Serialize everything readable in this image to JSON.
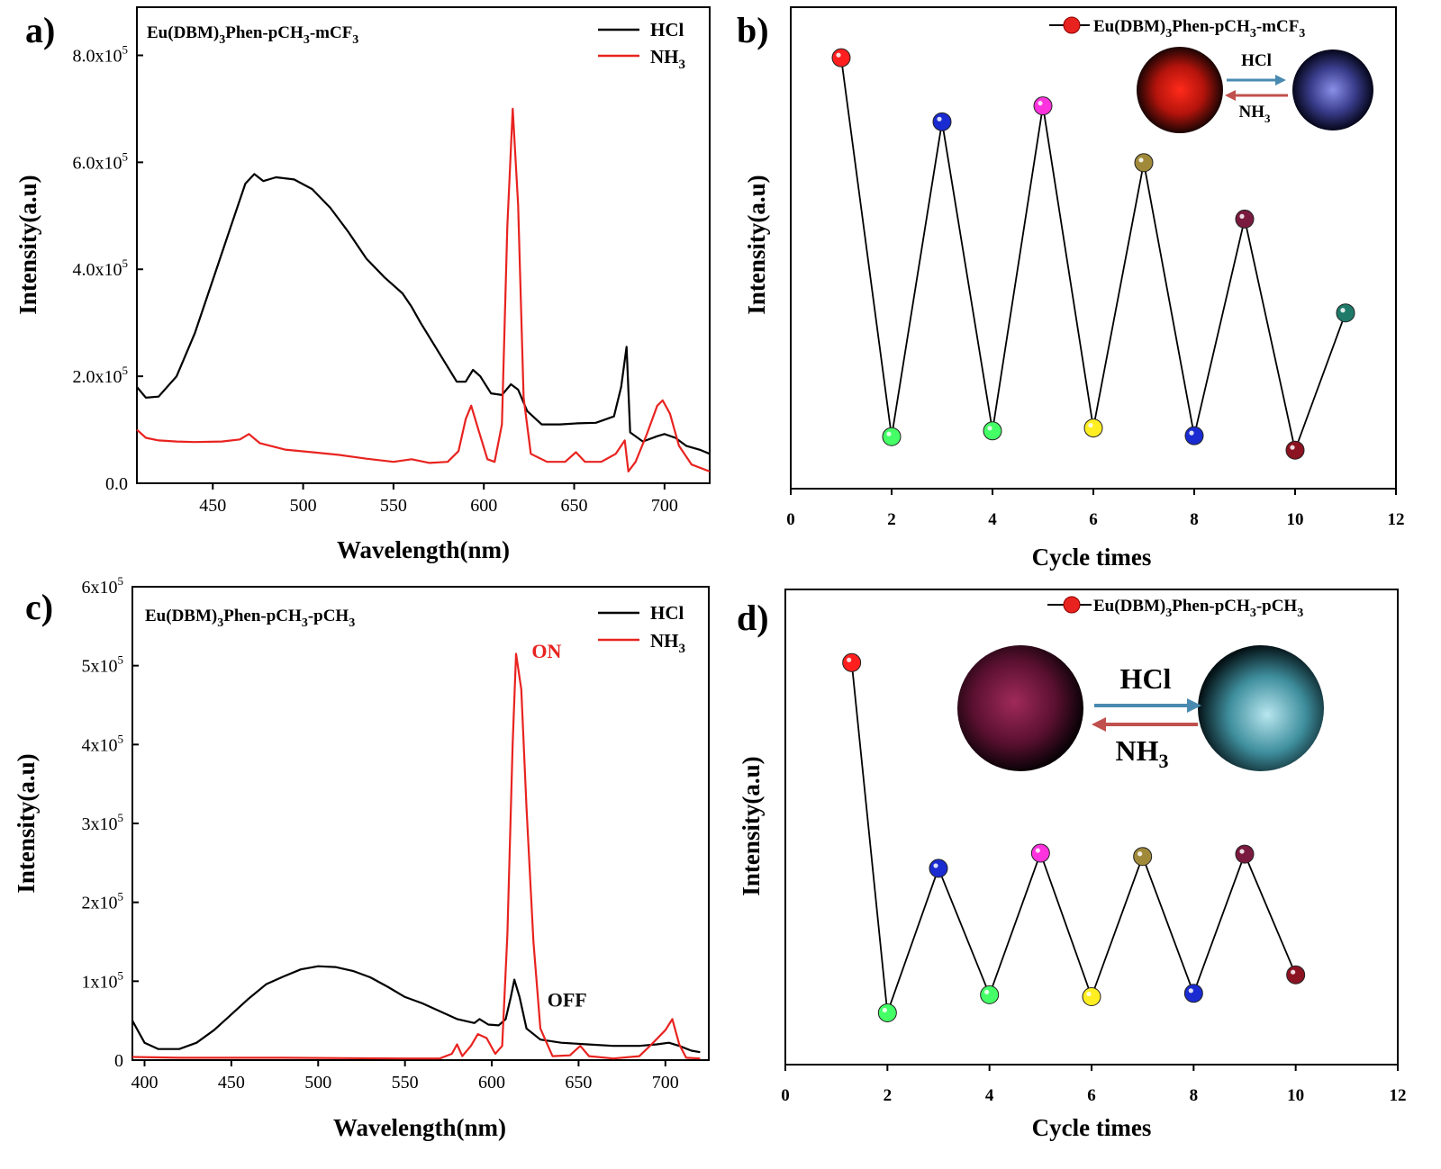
{
  "chart_data": [
    {
      "panel": "a)",
      "type": "line",
      "sample_label": "Eu(DBM)3Phen-pCH3-mCF3",
      "xlabel": "Wavelength(nm)",
      "ylabel": "Intensity(a.u)",
      "xlim": [
        408,
        725
      ],
      "ylim": [
        0,
        890000
      ],
      "xticks": [
        450,
        500,
        550,
        600,
        650,
        700
      ],
      "yticks": [
        {
          "value": 0,
          "label": "0.0"
        },
        {
          "value": 200000,
          "label": "2.0x10",
          "exp": "5"
        },
        {
          "value": 400000,
          "label": "4.0x10",
          "exp": "5"
        },
        {
          "value": 600000,
          "label": "6.0x10",
          "exp": "5"
        },
        {
          "value": 800000,
          "label": "8.0x10",
          "exp": "5"
        }
      ],
      "legend_position": "top-right",
      "series": [
        {
          "name": "HCl",
          "color": "#000000",
          "points": [
            [
              408,
              180000
            ],
            [
              413,
              160000
            ],
            [
              420,
              162000
            ],
            [
              430,
              200000
            ],
            [
              440,
              280000
            ],
            [
              450,
              380000
            ],
            [
              460,
              480000
            ],
            [
              468,
              560000
            ],
            [
              473,
              578000
            ],
            [
              478,
              565000
            ],
            [
              485,
              572000
            ],
            [
              495,
              568000
            ],
            [
              505,
              550000
            ],
            [
              515,
              515000
            ],
            [
              525,
              470000
            ],
            [
              535,
              420000
            ],
            [
              545,
              385000
            ],
            [
              555,
              355000
            ],
            [
              560,
              330000
            ],
            [
              565,
              300000
            ],
            [
              575,
              245000
            ],
            [
              585,
              190000
            ],
            [
              590,
              190000
            ],
            [
              594,
              212000
            ],
            [
              598,
              200000
            ],
            [
              604,
              168000
            ],
            [
              610,
              165000
            ],
            [
              615,
              185000
            ],
            [
              619,
              175000
            ],
            [
              624,
              135000
            ],
            [
              632,
              110000
            ],
            [
              642,
              110000
            ],
            [
              652,
              112000
            ],
            [
              662,
              113000
            ],
            [
              672,
              125000
            ],
            [
              676,
              180000
            ],
            [
              679,
              255000
            ],
            [
              681,
              95000
            ],
            [
              688,
              78000
            ],
            [
              696,
              88000
            ],
            [
              700,
              92000
            ],
            [
              706,
              85000
            ],
            [
              712,
              70000
            ],
            [
              720,
              62000
            ],
            [
              725,
              55000
            ]
          ]
        },
        {
          "name": "NH3",
          "color": "#e8231f",
          "points": [
            [
              408,
              100000
            ],
            [
              413,
              85000
            ],
            [
              420,
              80000
            ],
            [
              430,
              78000
            ],
            [
              440,
              77000
            ],
            [
              455,
              78000
            ],
            [
              465,
              82000
            ],
            [
              470,
              92000
            ],
            [
              476,
              75000
            ],
            [
              490,
              63000
            ],
            [
              505,
              58000
            ],
            [
              520,
              53000
            ],
            [
              535,
              46000
            ],
            [
              550,
              40000
            ],
            [
              560,
              45000
            ],
            [
              570,
              38000
            ],
            [
              580,
              40000
            ],
            [
              586,
              60000
            ],
            [
              590,
              120000
            ],
            [
              593,
              145000
            ],
            [
              597,
              100000
            ],
            [
              602,
              45000
            ],
            [
              606,
              40000
            ],
            [
              610,
              110000
            ],
            [
              613,
              480000
            ],
            [
              616,
              700000
            ],
            [
              619,
              520000
            ],
            [
              622,
              160000
            ],
            [
              626,
              55000
            ],
            [
              635,
              40000
            ],
            [
              645,
              40000
            ],
            [
              651,
              58000
            ],
            [
              656,
              40000
            ],
            [
              665,
              40000
            ],
            [
              673,
              55000
            ],
            [
              678,
              80000
            ],
            [
              680,
              22000
            ],
            [
              684,
              40000
            ],
            [
              690,
              90000
            ],
            [
              696,
              145000
            ],
            [
              699,
              155000
            ],
            [
              703,
              130000
            ],
            [
              708,
              70000
            ],
            [
              715,
              35000
            ],
            [
              725,
              22000
            ]
          ]
        }
      ]
    },
    {
      "panel": "b)",
      "type": "scatter",
      "xlabel": "Cycle times",
      "ylabel": "Intensity(a.u)",
      "xlim": [
        0,
        12
      ],
      "ylim": [
        0,
        1
      ],
      "xticks": [
        0,
        2,
        4,
        6,
        8,
        10,
        12
      ],
      "legend_position": "top-right",
      "series": [
        {
          "name": "Eu(DBM)3Phen-pCH3-mCF3",
          "marker_color": "#e8231f",
          "x": [
            1,
            2,
            3,
            4,
            5,
            6,
            7,
            8,
            9,
            10,
            11
          ],
          "y": [
            0.895,
            0.108,
            0.762,
            0.12,
            0.795,
            0.126,
            0.677,
            0.11,
            0.56,
            0.08,
            0.365
          ],
          "point_colors": [
            "#ff1f1f",
            "#44ff66",
            "#1a2bd1",
            "#44ff66",
            "#ff33dd",
            "#ffee22",
            "#a08a3a",
            "#1a2bd1",
            "#7a1a3e",
            "#8c1322",
            "#1f7a6a"
          ]
        }
      ],
      "inset": {
        "arrow_top": "HCl",
        "arrow_bottom": "NH3"
      }
    },
    {
      "panel": "c)",
      "type": "line",
      "sample_label": "Eu(DBM)3Phen-pCH3-pCH3",
      "xlabel": "Wavelength(nm)",
      "ylabel": "Intensity(a.u)",
      "xlim": [
        393,
        725
      ],
      "ylim": [
        0,
        600000
      ],
      "xticks": [
        400,
        450,
        500,
        550,
        600,
        650,
        700
      ],
      "yticks": [
        {
          "value": 0,
          "label": "0"
        },
        {
          "value": 100000,
          "label": "1x10",
          "exp": "5"
        },
        {
          "value": 200000,
          "label": "2x10",
          "exp": "5"
        },
        {
          "value": 300000,
          "label": "3x10",
          "exp": "5"
        },
        {
          "value": 400000,
          "label": "4x10",
          "exp": "5"
        },
        {
          "value": 500000,
          "label": "5x10",
          "exp": "5"
        },
        {
          "value": 600000,
          "label": "6x10",
          "exp": "5"
        }
      ],
      "legend_position": "top-right",
      "annotations": [
        {
          "text": "ON",
          "color": "#e8231f",
          "x": 623,
          "y": 510000
        },
        {
          "text": "OFF",
          "color": "#111111",
          "x": 632,
          "y": 68000
        }
      ],
      "series": [
        {
          "name": "HCl",
          "color": "#000000",
          "points": [
            [
              393,
              50000
            ],
            [
              400,
              22000
            ],
            [
              408,
              14000
            ],
            [
              420,
              14000
            ],
            [
              430,
              22000
            ],
            [
              440,
              38000
            ],
            [
              450,
              58000
            ],
            [
              460,
              78000
            ],
            [
              470,
              96000
            ],
            [
              480,
              106000
            ],
            [
              490,
              115000
            ],
            [
              500,
              119000
            ],
            [
              510,
              118000
            ],
            [
              520,
              113000
            ],
            [
              530,
              105000
            ],
            [
              540,
              93000
            ],
            [
              550,
              80000
            ],
            [
              560,
              72000
            ],
            [
              570,
              62000
            ],
            [
              580,
              52000
            ],
            [
              590,
              47000
            ],
            [
              593,
              52000
            ],
            [
              598,
              45000
            ],
            [
              604,
              44000
            ],
            [
              608,
              52000
            ],
            [
              611,
              80000
            ],
            [
              613,
              102000
            ],
            [
              616,
              80000
            ],
            [
              620,
              40000
            ],
            [
              628,
              26000
            ],
            [
              640,
              22000
            ],
            [
              655,
              20000
            ],
            [
              670,
              18000
            ],
            [
              685,
              18000
            ],
            [
              695,
              20000
            ],
            [
              702,
              22000
            ],
            [
              708,
              18000
            ],
            [
              715,
              12000
            ],
            [
              720,
              10000
            ]
          ]
        },
        {
          "name": "NH3",
          "color": "#e8231f",
          "points": [
            [
              393,
              4000
            ],
            [
              420,
              3000
            ],
            [
              480,
              3000
            ],
            [
              550,
              2000
            ],
            [
              570,
              2000
            ],
            [
              577,
              8000
            ],
            [
              580,
              20000
            ],
            [
              583,
              5000
            ],
            [
              588,
              18000
            ],
            [
              592,
              33000
            ],
            [
              597,
              28000
            ],
            [
              602,
              8000
            ],
            [
              606,
              18000
            ],
            [
              609,
              160000
            ],
            [
              612,
              400000
            ],
            [
              614,
              515000
            ],
            [
              617,
              470000
            ],
            [
              620,
              320000
            ],
            [
              624,
              150000
            ],
            [
              628,
              40000
            ],
            [
              635,
              5000
            ],
            [
              645,
              6000
            ],
            [
              651,
              18000
            ],
            [
              656,
              5000
            ],
            [
              670,
              2000
            ],
            [
              685,
              5000
            ],
            [
              692,
              20000
            ],
            [
              700,
              38000
            ],
            [
              704,
              52000
            ],
            [
              708,
              20000
            ],
            [
              712,
              3000
            ],
            [
              720,
              2000
            ]
          ]
        }
      ]
    },
    {
      "panel": "d)",
      "type": "scatter",
      "xlabel": "Cycle times",
      "ylabel": "Intensity(a.u)",
      "xlim": [
        0,
        12
      ],
      "ylim": [
        0,
        1
      ],
      "xticks": [
        0,
        2,
        4,
        6,
        8,
        10,
        12
      ],
      "legend_position": "top-right",
      "series": [
        {
          "name": "Eu(DBM)3Phen-pCH3-pCH3",
          "marker_color": "#e8231f",
          "x": [
            1.3,
            2,
            3,
            4,
            5,
            6,
            7,
            8,
            9,
            10
          ],
          "y": [
            0.846,
            0.109,
            0.413,
            0.147,
            0.445,
            0.143,
            0.438,
            0.15,
            0.443,
            0.189
          ],
          "point_colors": [
            "#ff1f1f",
            "#44ff66",
            "#1a2bd1",
            "#44ff66",
            "#ff33dd",
            "#ffee22",
            "#a08a3a",
            "#1a2bd1",
            "#7a1a3e",
            "#8c1322"
          ]
        }
      ],
      "inset": {
        "arrow_top": "HCl",
        "arrow_bottom": "NH3"
      }
    }
  ]
}
